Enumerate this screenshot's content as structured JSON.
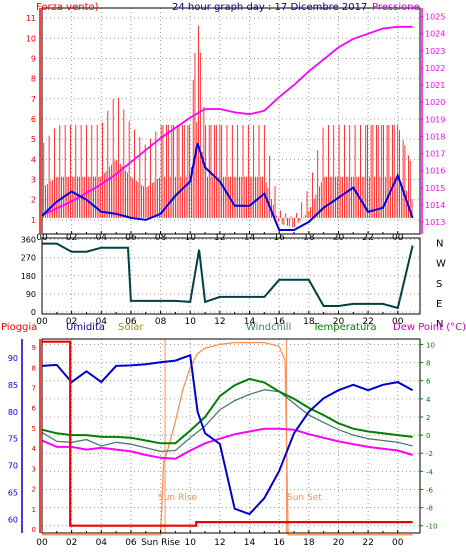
{
  "top_panel": {
    "left_label": "Forza vento)",
    "title": "24 hour graph day : 17 Dicembre 2017",
    "right_label": "Pressione"
  },
  "dir_panel": {
    "compass_labels": [
      "N",
      "W",
      "S",
      "E",
      "N"
    ]
  },
  "bottom_panel": {
    "labels": {
      "pioggia": "Pioggia",
      "umidita": "Umidita",
      "solar": "Solar",
      "windchill": "Windchill",
      "temperatura": "Temperatura",
      "dewpoint": "Dew Point (°C)"
    },
    "sunrise_label": "Sun Rise",
    "sunset_label": "Sun Set",
    "sunrise_tick_label": "Sun Rise"
  },
  "colors": {
    "wind": "#ff0000",
    "gust": "#ff0000",
    "avg_wind": "#0000dd",
    "pressure": "#ff00ff",
    "direction": "#004040",
    "rain": "#ee0000",
    "humidity": "#0000cc",
    "solar": "#ff9050",
    "windchill": "#4a7a72",
    "temperature": "#008000",
    "dewpoint": "#ff00ff",
    "pioggia_label": "#ff0000",
    "umidita_label": "#000099",
    "solar_label": "#999900",
    "windchill_label": "#4a7a72",
    "temperatura_label": "#008000",
    "dewpoint_label": "#cc00cc",
    "sun_marker": "#ff9050"
  },
  "chart_data": [
    {
      "type": "line",
      "title": "24 hour graph day : 17 Dicembre 2017",
      "xticks": [
        "00",
        "02",
        "04",
        "06",
        "08",
        "10",
        "12",
        "14",
        "16",
        "18",
        "20",
        "22",
        "00"
      ],
      "y_left_label": "Forza vento)",
      "y_left_ticks": [
        1,
        2,
        3,
        4,
        5,
        6,
        7,
        8,
        9,
        10,
        11
      ],
      "y_left_range": [
        0.3,
        11.5
      ],
      "y_right_label": "Pressione",
      "y_right_ticks": [
        1013,
        1014,
        1015,
        1016,
        1017,
        1018,
        1019,
        1020,
        1021,
        1022,
        1023,
        1024,
        1025
      ],
      "y_right_range": [
        1012.3,
        1025.5
      ],
      "x_range_hours": [
        0,
        25.5
      ],
      "grid": true,
      "series": [
        {
          "name": "Pressione",
          "x": [
            0,
            1,
            2,
            3,
            4,
            5,
            6,
            7,
            8,
            9,
            10,
            11,
            12,
            13,
            14,
            15,
            16,
            17,
            18,
            19,
            20,
            21,
            22,
            23,
            24,
            25
          ],
          "values": [
            1013.4,
            1013.8,
            1014.2,
            1014.7,
            1015.2,
            1015.8,
            1016.5,
            1017.2,
            1017.9,
            1018.5,
            1019.1,
            1019.6,
            1019.6,
            1019.4,
            1019.3,
            1019.5,
            1020.3,
            1021.0,
            1021.8,
            1022.5,
            1023.2,
            1023.7,
            1024.0,
            1024.3,
            1024.4,
            1024.4
          ]
        },
        {
          "name": "avg_wind",
          "x": [
            0,
            1,
            2,
            3,
            4,
            5,
            6,
            7,
            8,
            9,
            10,
            10.5,
            11,
            12,
            13,
            14,
            15,
            16,
            17,
            18,
            19,
            20,
            21,
            22,
            23,
            24,
            25
          ],
          "values": [
            1.2,
            1.9,
            2.4,
            2.0,
            1.4,
            1.3,
            1.1,
            1.0,
            1.3,
            2.2,
            2.9,
            4.8,
            3.6,
            2.9,
            1.7,
            1.7,
            2.3,
            0.5,
            0.5,
            0.9,
            1.6,
            2.1,
            2.6,
            1.4,
            1.6,
            3.2,
            1.1
          ]
        },
        {
          "name": "gust",
          "x": [
            0,
            1,
            2,
            3,
            4,
            5,
            6,
            7,
            8,
            9,
            10,
            10.5,
            11,
            12,
            13,
            14,
            15,
            16,
            17,
            18,
            19,
            20,
            21,
            22,
            23,
            24,
            25
          ],
          "values": [
            4.7,
            5.7,
            5.7,
            5.7,
            5.7,
            7.3,
            5.7,
            4.7,
            5.7,
            5.7,
            5.7,
            11.3,
            5.7,
            5.7,
            5.7,
            5.7,
            5.7,
            1.5,
            1.1,
            2.6,
            5.7,
            5.7,
            5.7,
            5.7,
            5.7,
            5.7,
            3.6
          ]
        }
      ]
    },
    {
      "type": "line",
      "title": "",
      "xticks": [
        "00",
        "02",
        "04",
        "06",
        "08",
        "10",
        "12",
        "14",
        "16",
        "18",
        "20",
        "22",
        "00"
      ],
      "y_left_ticks": [
        0,
        90,
        180,
        270,
        360
      ],
      "y_left_range": [
        -10,
        368
      ],
      "x_range_hours": [
        0,
        25.5
      ],
      "grid": true,
      "series": [
        {
          "name": "direction",
          "x": [
            0,
            1,
            2,
            3,
            4,
            5,
            5.8,
            6,
            7,
            8,
            9,
            10,
            10.6,
            11,
            12,
            13,
            14,
            15,
            16,
            17,
            18,
            19,
            20,
            21,
            22,
            23,
            24,
            25
          ],
          "values": [
            340,
            340,
            300,
            300,
            320,
            320,
            320,
            55,
            55,
            55,
            55,
            50,
            310,
            50,
            75,
            75,
            75,
            75,
            160,
            160,
            160,
            30,
            30,
            40,
            40,
            40,
            20,
            330
          ]
        }
      ]
    },
    {
      "type": "line",
      "title": "",
      "xticks": [
        "00",
        "02",
        "04",
        "06",
        "Sun Rise",
        "10",
        "12",
        "14",
        "16",
        "18",
        "20",
        "22",
        "00"
      ],
      "y_left_label": "Umidita",
      "y_left_ticks": [
        60,
        65,
        70,
        75,
        80,
        85,
        90
      ],
      "y_left_range": [
        57.5,
        93.5
      ],
      "y_right_label": "Dew Point (°C)",
      "y_right_ticks": [
        -10,
        -8,
        -6,
        -4,
        -2,
        0,
        2,
        4,
        6,
        8,
        10
      ],
      "y_right_range": [
        -10.8,
        10.6
      ],
      "x_range_hours": [
        0,
        25.5
      ],
      "grid": true,
      "series": [
        {
          "name": "Umidita",
          "x": [
            0,
            1,
            2,
            3,
            4,
            5,
            6,
            7,
            8,
            9,
            10,
            10.5,
            11,
            12,
            12.5,
            13,
            14,
            15,
            16,
            17,
            18,
            19,
            20,
            21,
            22,
            23,
            24,
            25
          ],
          "values": [
            88.5,
            88.7,
            85.5,
            87.5,
            85.5,
            88.5,
            88.6,
            88.8,
            89.2,
            89.5,
            90.5,
            80,
            76,
            74,
            68,
            62,
            61,
            64,
            69,
            76,
            80,
            82.5,
            84,
            85,
            84,
            85,
            85.5,
            84
          ]
        },
        {
          "name": "Temperatura",
          "x": [
            0,
            1,
            2,
            3,
            4,
            5,
            6,
            7,
            8,
            9,
            10,
            11,
            12,
            13,
            14,
            15,
            16,
            17,
            18,
            19,
            20,
            21,
            22,
            23,
            24,
            25
          ],
          "values": [
            0.6,
            0.2,
            0,
            0,
            -0.2,
            -0.2,
            -0.3,
            -0.6,
            -0.9,
            -0.9,
            0.5,
            2.0,
            4.3,
            5.5,
            6.2,
            5.8,
            4.8,
            4.0,
            3.0,
            2.2,
            1.3,
            0.7,
            0.4,
            0.2,
            0,
            -0.2
          ]
        },
        {
          "name": "Windchill",
          "x": [
            0,
            1,
            2,
            3,
            4,
            5,
            6,
            7,
            8,
            9,
            10,
            11,
            12,
            13,
            14,
            15,
            16,
            17,
            18,
            19,
            20,
            21,
            22,
            23,
            24,
            25
          ],
          "values": [
            0.3,
            -0.7,
            -0.8,
            -0.5,
            -1.2,
            -0.8,
            -1.0,
            -1.4,
            -1.8,
            -1.7,
            -0.3,
            1.0,
            2.8,
            3.8,
            4.5,
            5.0,
            4.8,
            3.5,
            2.2,
            1.4,
            0.6,
            0.0,
            -0.4,
            -0.6,
            -0.8,
            -1.2
          ]
        },
        {
          "name": "Dew Point (°C)",
          "x": [
            0,
            1,
            2,
            3,
            4,
            5,
            6,
            7,
            8,
            9,
            10,
            11,
            12,
            13,
            14,
            15,
            16,
            17,
            18,
            19,
            20,
            21,
            22,
            23,
            24,
            25
          ],
          "values": [
            -0.6,
            -1.3,
            -1.3,
            -1.6,
            -1.4,
            -1.6,
            -1.8,
            -2.2,
            -2.5,
            -2.6,
            -1.7,
            -0.9,
            -0.4,
            0.1,
            0.4,
            0.7,
            0.7,
            0.6,
            0.1,
            -0.3,
            -0.7,
            -1.0,
            -1.3,
            -1.5,
            -1.7,
            -2.2
          ]
        },
        {
          "name": "Solar",
          "x": [
            0,
            7,
            8,
            8.2,
            8.5,
            9,
            9.5,
            10,
            10.5,
            11,
            12,
            13,
            14,
            15,
            16,
            16.4,
            16.6,
            17,
            25
          ],
          "values": [
            -11,
            -11,
            -11,
            -3,
            -1.5,
            1.5,
            5,
            7.5,
            9.0,
            9.6,
            10.0,
            10.2,
            10.2,
            10.2,
            9.8,
            8.2,
            -11,
            -11,
            -11
          ]
        },
        {
          "name": "Pioggia",
          "x": [
            0,
            1.9,
            1.9,
            10.4,
            10.4,
            25
          ],
          "values": [
            10.3,
            10.3,
            -10.0,
            -10.0,
            -9.6,
            -9.6
          ]
        }
      ]
    }
  ]
}
